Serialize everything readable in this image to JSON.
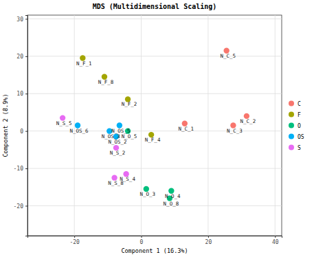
{
  "chart_data": {
    "type": "scatter",
    "title": "MDS (Multidimensional Scaling)",
    "x_label": "Component 1 (16.3%)",
    "y_label": "Component 2 (8.9%)",
    "xlim": [
      -34,
      42
    ],
    "ylim": [
      -28,
      31
    ],
    "xticks": [
      -20,
      0,
      20,
      40
    ],
    "yticks": [
      -20,
      -10,
      0,
      10,
      20,
      30
    ],
    "grid": true,
    "legend": "right",
    "marker": "circle",
    "series": [
      {
        "name": "C",
        "color": "#F8766D",
        "x": [
          25.5,
          31.5,
          27.5,
          13
        ],
        "values": [
          21.5,
          4,
          1.5,
          2
        ],
        "labels": [
          "N_C_5",
          "N_C_2",
          "N_C_3",
          "N_C_1"
        ]
      },
      {
        "name": "F",
        "color": "#A3A500",
        "x": [
          -17.5,
          -11,
          -4,
          3
        ],
        "values": [
          19.5,
          14.5,
          8.5,
          -1
        ],
        "labels": [
          "N_F_1",
          "N_F_8",
          "N_F_2",
          "N_F_4"
        ]
      },
      {
        "name": "O",
        "color": "#00BF7D",
        "x": [
          -4,
          1.5,
          9,
          8.5
        ],
        "values": [
          0,
          -15.5,
          -16,
          -18
        ],
        "labels": [
          "N_O_5",
          "N_O_3",
          "N_O_4",
          "N_O_8"
        ]
      },
      {
        "name": "OS",
        "color": "#00B0F6",
        "x": [
          -19,
          -6.5,
          -9.5,
          -7.5
        ],
        "values": [
          1.5,
          1.5,
          0,
          -1.5
        ],
        "labels": [
          "N_OS_6",
          "N_OS_5",
          "N_OS_3",
          "N_OS_2"
        ]
      },
      {
        "name": "S",
        "color": "#E76BF3",
        "x": [
          -23.5,
          -7.5,
          -4.5,
          -8
        ],
        "values": [
          3.5,
          -4.5,
          -11.5,
          -12.5
        ],
        "labels": [
          "N_S_5",
          "N_S_2",
          "N_S_4",
          "N_S_8"
        ]
      }
    ]
  }
}
